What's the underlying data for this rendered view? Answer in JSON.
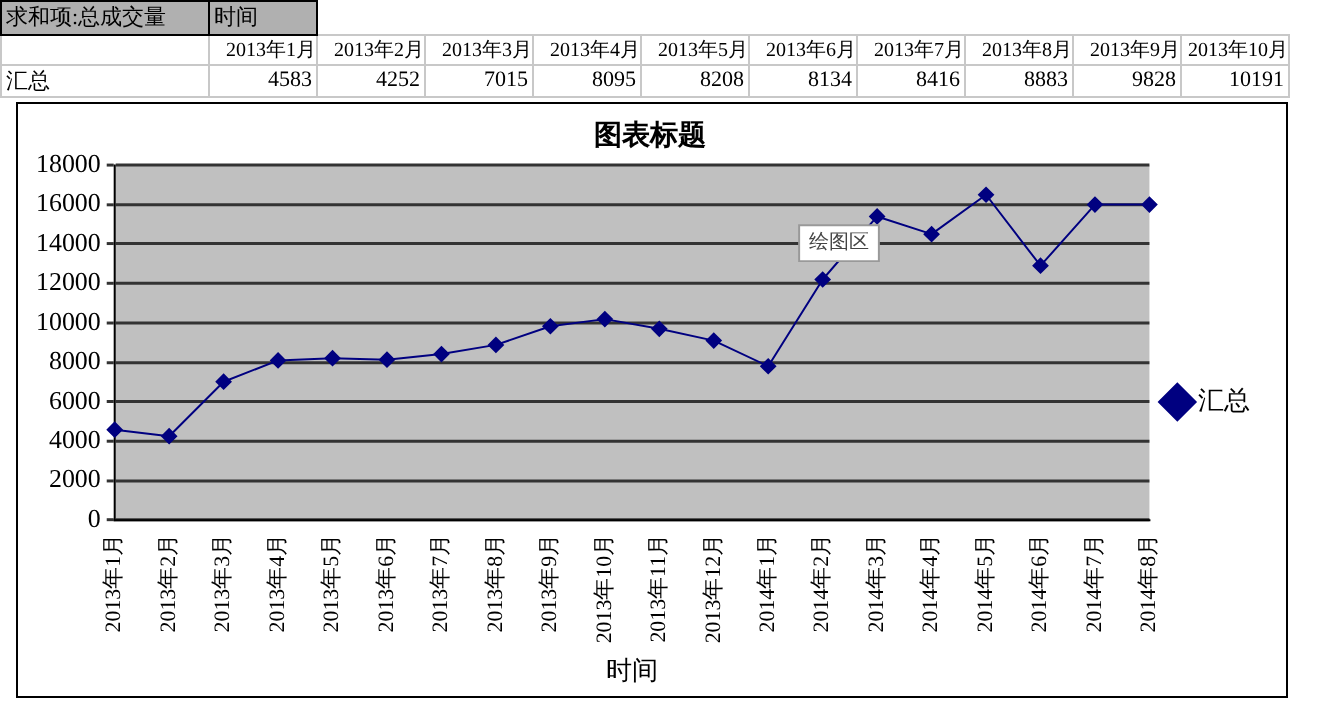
{
  "chart_data": [
    {
      "type": "other",
      "categories": [
        "2013年1月",
        "2013年2月",
        "2013年3月",
        "2013年4月",
        "2013年5月",
        "2013年6月",
        "2013年7月",
        "2013年8月",
        "2013年9月",
        "2013年10月"
      ],
      "values": [
        4583,
        4252,
        7015,
        8095,
        8208,
        8134,
        8416,
        8883,
        9828,
        10191
      ],
      "data_labels": true,
      "annotations": [
        "求和项:总成交量",
        "时间",
        "汇总"
      ]
    },
    {
      "type": "line",
      "title": "图表标题",
      "xlabel": "时间",
      "categories": [
        "2013年1月",
        "2013年2月",
        "2013年3月",
        "2013年4月",
        "2013年5月",
        "2013年6月",
        "2013年7月",
        "2013年8月",
        "2013年9月",
        "2013年10月",
        "2013年11月",
        "2013年12月",
        "2014年1月",
        "2014年2月",
        "2014年3月",
        "2014年4月",
        "2014年5月",
        "2014年6月",
        "2014年7月",
        "2014年8月"
      ],
      "series": [
        {
          "name": "汇总",
          "color": "#000080",
          "values": [
            4583,
            4252,
            7015,
            8095,
            8208,
            8134,
            8416,
            8883,
            9828,
            10191,
            9700,
            9100,
            7800,
            12200,
            15400,
            14500,
            16500,
            12900,
            16000,
            16000
          ]
        }
      ],
      "ylim": [
        0,
        18000
      ],
      "yticks": [
        0,
        2000,
        4000,
        6000,
        8000,
        10000,
        12000,
        14000,
        16000,
        18000
      ],
      "grid": "y",
      "legend": "right",
      "marker": "diamond",
      "line_style": "solid",
      "annotations": [
        "绘图区"
      ]
    }
  ]
}
